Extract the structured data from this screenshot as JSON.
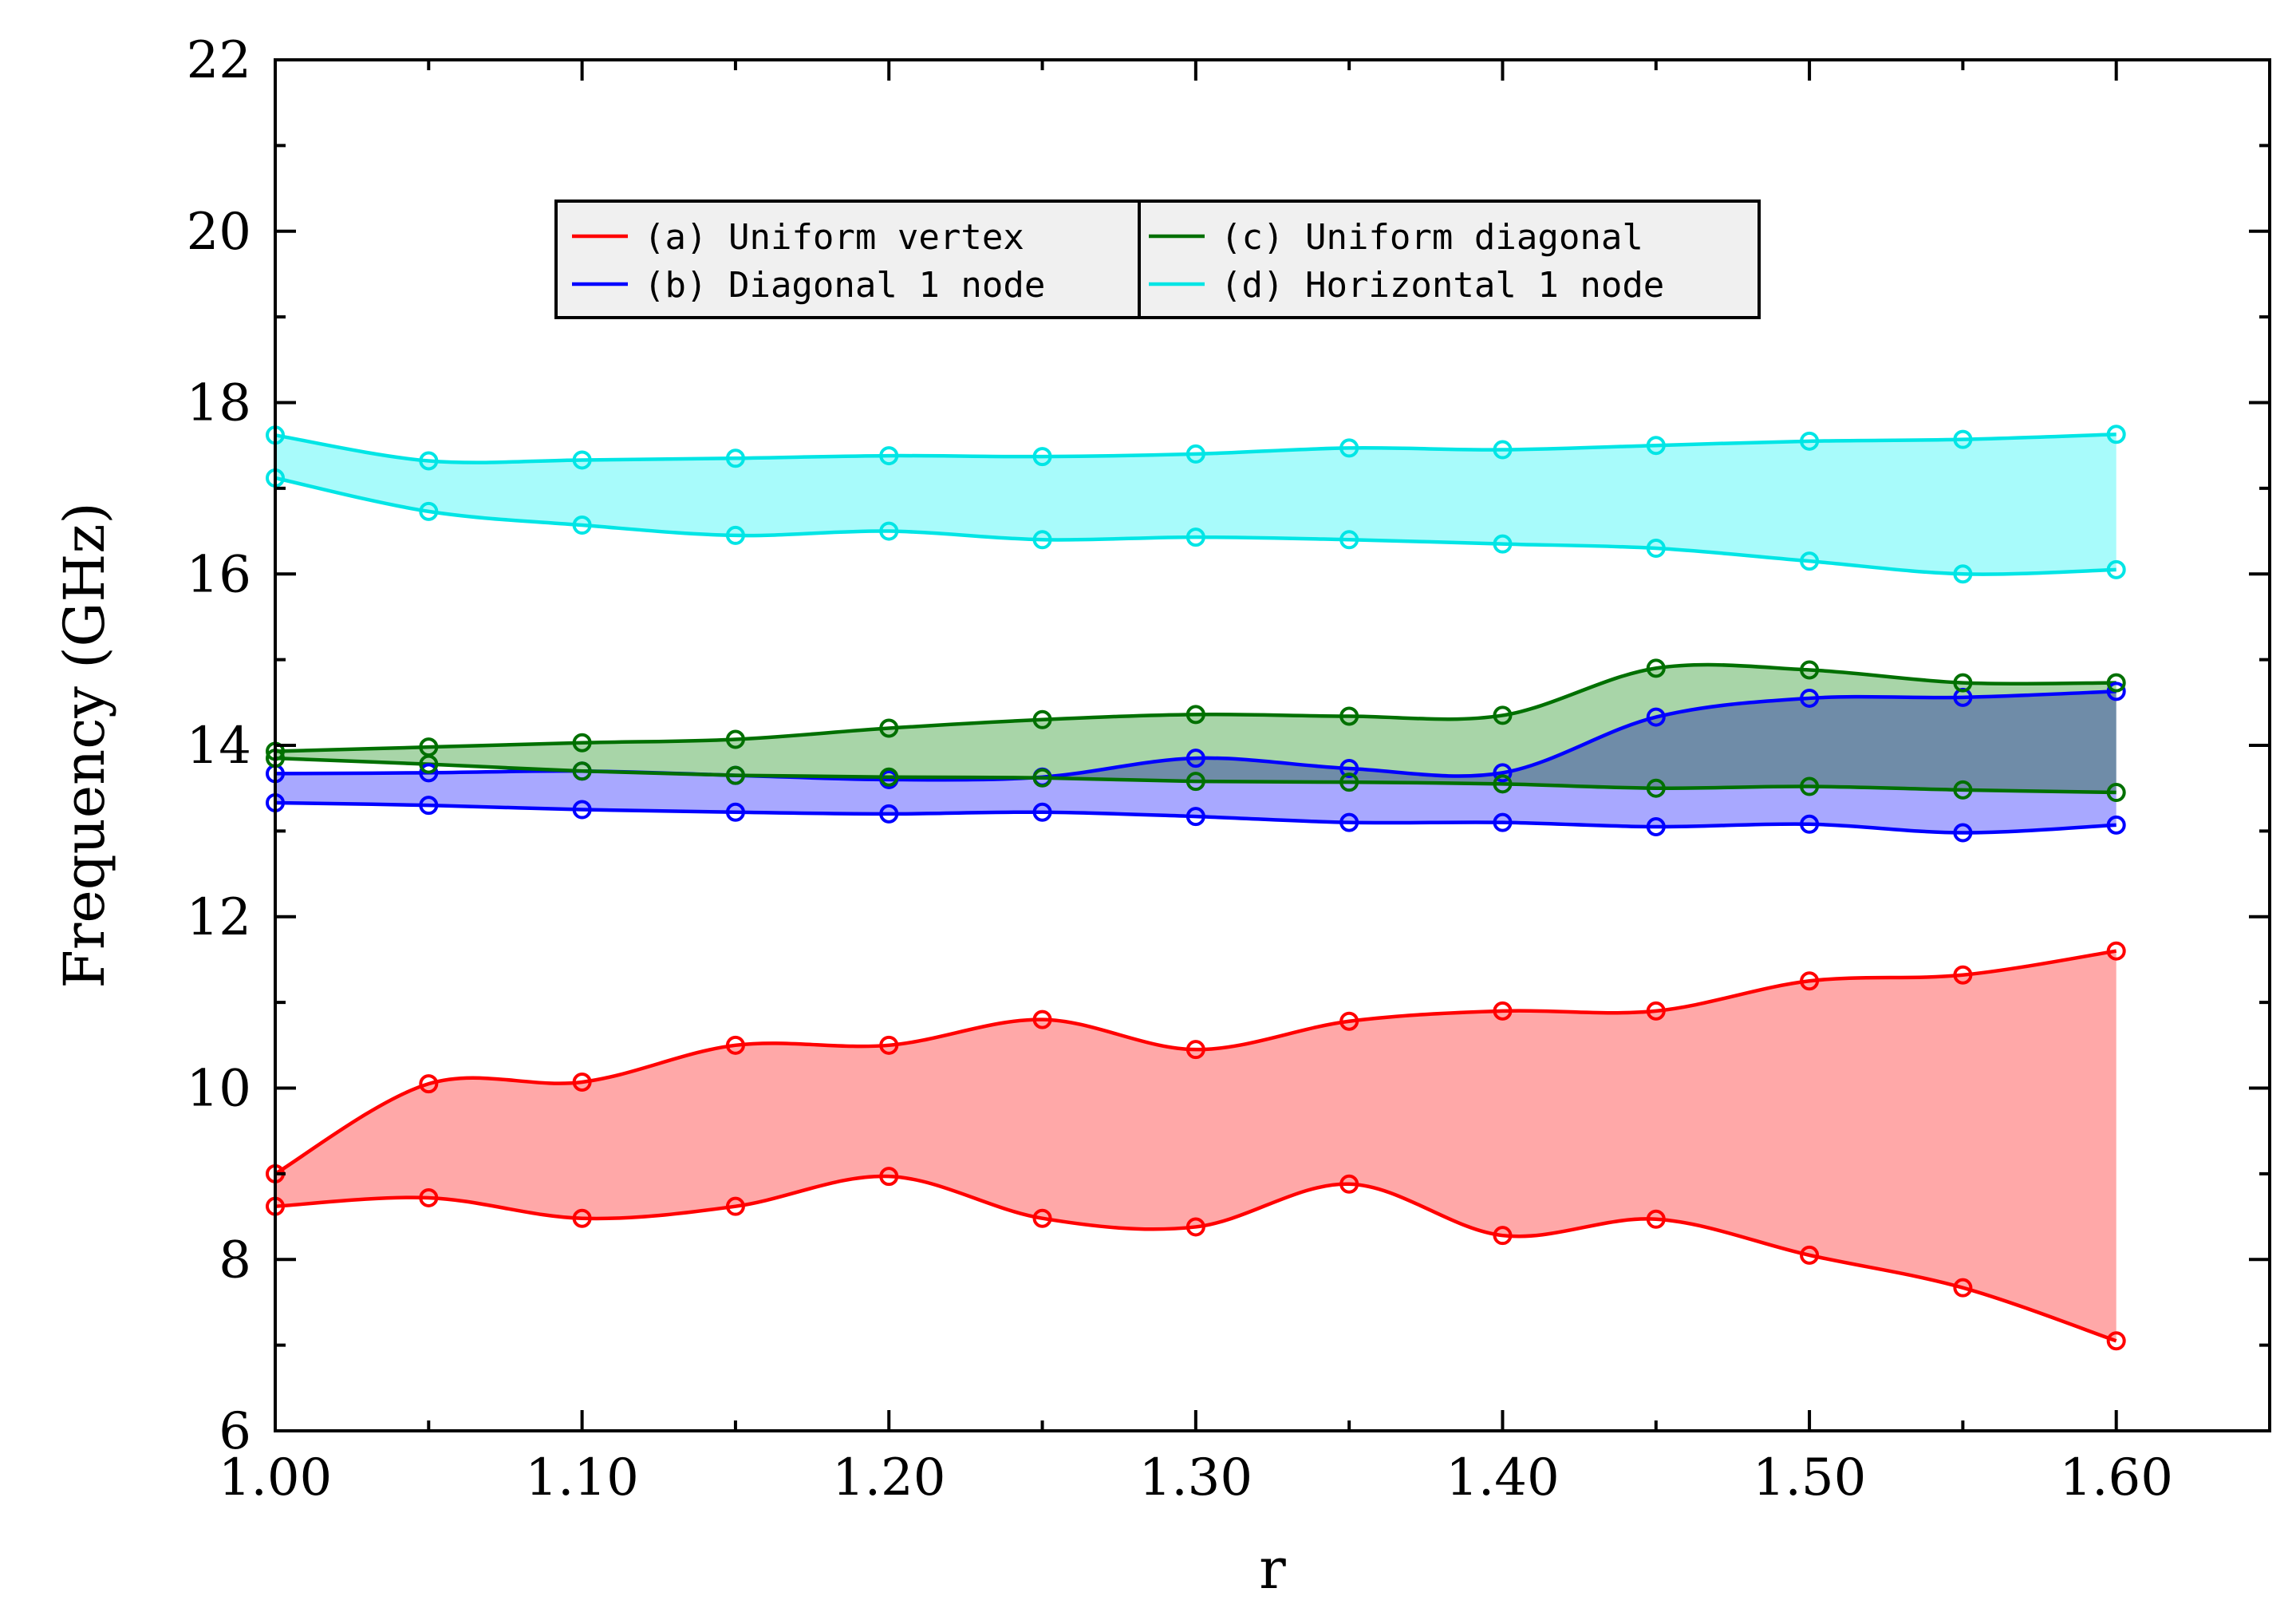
{
  "chart_data": {
    "type": "area",
    "title": "",
    "xlabel": "r",
    "ylabel": "Frequency (GHz)",
    "xlim": [
      1.0,
      1.65
    ],
    "ylim": [
      6,
      22
    ],
    "xticks": [
      1.0,
      1.1,
      1.2,
      1.3,
      1.4,
      1.5,
      1.6
    ],
    "xtick_labels": [
      "1.00",
      "1.10",
      "1.20",
      "1.30",
      "1.40",
      "1.50",
      "1.60"
    ],
    "yticks": [
      6,
      8,
      10,
      12,
      14,
      16,
      18,
      20,
      22
    ],
    "ytick_labels": [
      "6",
      "8",
      "10",
      "12",
      "14",
      "16",
      "18",
      "20",
      "22"
    ],
    "legend_position": "upper-left-center",
    "x": [
      1.0,
      1.05,
      1.1,
      1.15,
      1.2,
      1.25,
      1.3,
      1.35,
      1.4,
      1.45,
      1.5,
      1.55,
      1.6
    ],
    "series": [
      {
        "name": "(a) Uniform vertex",
        "color": "#ff0000",
        "fill": "#ffa8a8",
        "upper": [
          9.0,
          10.05,
          10.07,
          10.5,
          10.5,
          10.8,
          10.45,
          10.78,
          10.9,
          10.9,
          11.25,
          11.32,
          11.6
        ],
        "lower": [
          8.62,
          8.72,
          8.48,
          8.62,
          8.97,
          8.48,
          8.38,
          8.88,
          8.28,
          8.47,
          8.05,
          7.67,
          7.05
        ]
      },
      {
        "name": "(b) Diagonal 1 node",
        "color": "#0000ff",
        "fill": "#a8a8ff",
        "upper": [
          13.67,
          13.68,
          13.7,
          13.65,
          13.6,
          13.63,
          13.85,
          13.73,
          13.68,
          14.33,
          14.55,
          14.56,
          14.63
        ],
        "lower": [
          13.33,
          13.3,
          13.25,
          13.22,
          13.2,
          13.22,
          13.17,
          13.1,
          13.1,
          13.05,
          13.08,
          12.98,
          13.07
        ]
      },
      {
        "name": "(c) Uniform diagonal",
        "color": "#007000",
        "fill": "#a8d5a8",
        "upper": [
          13.93,
          13.98,
          14.03,
          14.07,
          14.2,
          14.3,
          14.36,
          14.34,
          14.35,
          14.9,
          14.88,
          14.73,
          14.73
        ],
        "lower": [
          13.85,
          13.78,
          13.7,
          13.65,
          13.63,
          13.62,
          13.58,
          13.57,
          13.55,
          13.5,
          13.52,
          13.48,
          13.45
        ]
      },
      {
        "name": "(d) Horizontal 1 node",
        "color": "#00e5e5",
        "fill": "#a8fbfb",
        "upper": [
          17.62,
          17.32,
          17.33,
          17.35,
          17.38,
          17.37,
          17.4,
          17.47,
          17.45,
          17.5,
          17.55,
          17.57,
          17.63
        ],
        "lower": [
          17.12,
          16.73,
          16.57,
          16.45,
          16.5,
          16.4,
          16.43,
          16.4,
          16.35,
          16.3,
          16.15,
          16.0,
          16.05
        ]
      }
    ],
    "legend_entries": [
      "(a) Uniform vertex",
      "(b) Diagonal 1 node",
      "(c) Uniform diagonal",
      "(d) Horizontal 1 node"
    ]
  },
  "colors": {
    "axis": "#000000",
    "legend_bg": "#f0f0f0",
    "overlap_fill": "#7a93c9"
  }
}
